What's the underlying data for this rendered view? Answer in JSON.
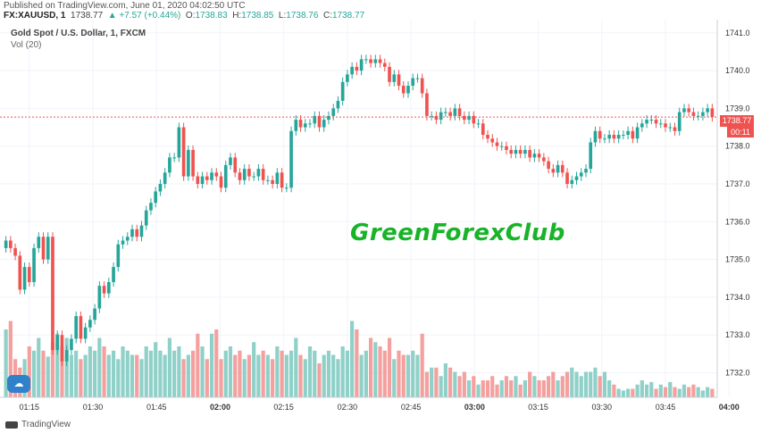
{
  "header": {
    "published": "Published on TradingView.com, June 01, 2020 04:02:50 UTC",
    "symbol": "FX:XAUUSD, 1",
    "last": "1738.77",
    "change": "▲ +7.57 (+0.44%)",
    "o_label": "O:",
    "o_val": "1738.83",
    "h_label": "H:",
    "h_val": "1738.85",
    "l_label": "L:",
    "l_val": "1738.76",
    "c_label": "C:",
    "c_val": "1738.77"
  },
  "legend": {
    "instrument": "Gold Spot / U.S. Dollar, 1, FXCM",
    "volume": "Vol (20)"
  },
  "watermark": "GreenForexClub",
  "price_tag": "1738.77",
  "timer_tag": "00:11",
  "footer": {
    "brand": "TradingView"
  },
  "colors": {
    "up": "#26a69a",
    "down": "#ef5350",
    "up_vol": "#8fd0c8",
    "down_vol": "#f3a09e",
    "grid": "#f0f3fa"
  },
  "chart_data": {
    "type": "candlestick",
    "x_ticks": [
      "01:15",
      "01:30",
      "01:45",
      "02:00",
      "02:15",
      "02:30",
      "02:45",
      "03:00",
      "03:15",
      "03:30",
      "03:45",
      "04:00"
    ],
    "y_ticks": [
      1732.0,
      1733.0,
      1734.0,
      1735.0,
      1736.0,
      1737.0,
      1738.0,
      1739.0,
      1740.0,
      1741.0
    ],
    "ylim": [
      1731.35,
      1741.35
    ],
    "current_price": 1738.77,
    "candles_close": [
      1735.5,
      1735.3,
      1735.1,
      1734.2,
      1734.8,
      1734.4,
      1735.3,
      1735.6,
      1735.0,
      1735.6,
      1732.6,
      1733.0,
      1732.3,
      1732.6,
      1732.9,
      1733.5,
      1732.9,
      1733.2,
      1733.4,
      1733.7,
      1734.3,
      1734.1,
      1734.4,
      1734.8,
      1735.4,
      1735.5,
      1735.6,
      1735.8,
      1735.6,
      1735.9,
      1736.3,
      1736.5,
      1736.8,
      1737.0,
      1737.3,
      1737.7,
      1737.7,
      1738.5,
      1737.2,
      1737.9,
      1737.2,
      1737.0,
      1737.2,
      1737.1,
      1737.3,
      1737.2,
      1736.9,
      1737.5,
      1737.7,
      1737.3,
      1737.1,
      1737.4,
      1737.2,
      1737.2,
      1737.4,
      1737.1,
      1737.1,
      1737.0,
      1737.3,
      1736.9,
      1736.9,
      1738.4,
      1738.7,
      1738.5,
      1738.6,
      1738.6,
      1738.8,
      1738.5,
      1738.7,
      1738.8,
      1739.0,
      1739.2,
      1739.7,
      1739.9,
      1740.1,
      1740.0,
      1740.3,
      1740.3,
      1740.2,
      1740.3,
      1740.2,
      1740.1,
      1739.7,
      1739.9,
      1739.6,
      1739.4,
      1739.6,
      1739.8,
      1739.8,
      1739.4,
      1738.8,
      1738.8,
      1738.7,
      1738.9,
      1738.9,
      1738.8,
      1739.0,
      1738.8,
      1738.7,
      1738.8,
      1738.6,
      1738.6,
      1738.3,
      1738.2,
      1738.1,
      1738.0,
      1738.0,
      1737.9,
      1737.8,
      1737.9,
      1737.8,
      1737.9,
      1737.7,
      1737.8,
      1737.7,
      1737.6,
      1737.4,
      1737.3,
      1737.5,
      1737.3,
      1737.0,
      1737.1,
      1737.2,
      1737.3,
      1737.4,
      1738.1,
      1738.4,
      1738.2,
      1738.2,
      1738.3,
      1738.2,
      1738.3,
      1738.3,
      1738.4,
      1738.2,
      1738.5,
      1738.6,
      1738.7,
      1738.7,
      1738.6,
      1738.6,
      1738.5,
      1738.5,
      1738.4,
      1738.9,
      1739.0,
      1738.9,
      1738.8,
      1738.8,
      1738.9,
      1739.0,
      1738.77
    ],
    "volume": {
      "ylim": [
        0,
        1
      ],
      "values": [
        0.8,
        0.9,
        0.45,
        0.35,
        0.45,
        0.6,
        0.55,
        0.7,
        0.55,
        0.48,
        0.65,
        0.75,
        0.6,
        0.7,
        0.5,
        0.55,
        0.45,
        0.5,
        0.6,
        0.55,
        0.7,
        0.6,
        0.5,
        0.55,
        0.45,
        0.6,
        0.55,
        0.5,
        0.5,
        0.45,
        0.6,
        0.55,
        0.65,
        0.55,
        0.5,
        0.7,
        0.55,
        0.6,
        0.45,
        0.5,
        0.55,
        0.75,
        0.6,
        0.45,
        0.75,
        0.8,
        0.45,
        0.55,
        0.6,
        0.5,
        0.55,
        0.45,
        0.5,
        0.65,
        0.5,
        0.55,
        0.5,
        0.45,
        0.6,
        0.55,
        0.5,
        0.55,
        0.7,
        0.5,
        0.45,
        0.6,
        0.55,
        0.4,
        0.5,
        0.55,
        0.5,
        0.45,
        0.6,
        0.55,
        0.9,
        0.8,
        0.5,
        0.55,
        0.7,
        0.65,
        0.6,
        0.55,
        0.7,
        0.45,
        0.55,
        0.5,
        0.5,
        0.55,
        0.5,
        0.75,
        0.3,
        0.35,
        0.35,
        0.25,
        0.4,
        0.35,
        0.3,
        0.25,
        0.3,
        0.2,
        0.25,
        0.15,
        0.2,
        0.2,
        0.25,
        0.15,
        0.2,
        0.25,
        0.2,
        0.25,
        0.15,
        0.2,
        0.3,
        0.25,
        0.2,
        0.2,
        0.25,
        0.3,
        0.2,
        0.25,
        0.3,
        0.35,
        0.3,
        0.25,
        0.3,
        0.3,
        0.35,
        0.25,
        0.3,
        0.2,
        0.15,
        0.1,
        0.08,
        0.1,
        0.1,
        0.15,
        0.2,
        0.15,
        0.18,
        0.1,
        0.15,
        0.12,
        0.18,
        0.12,
        0.1,
        0.15,
        0.12,
        0.15,
        0.12,
        0.08,
        0.12,
        0.1,
        0.12,
        0.1,
        0.05
      ]
    }
  }
}
